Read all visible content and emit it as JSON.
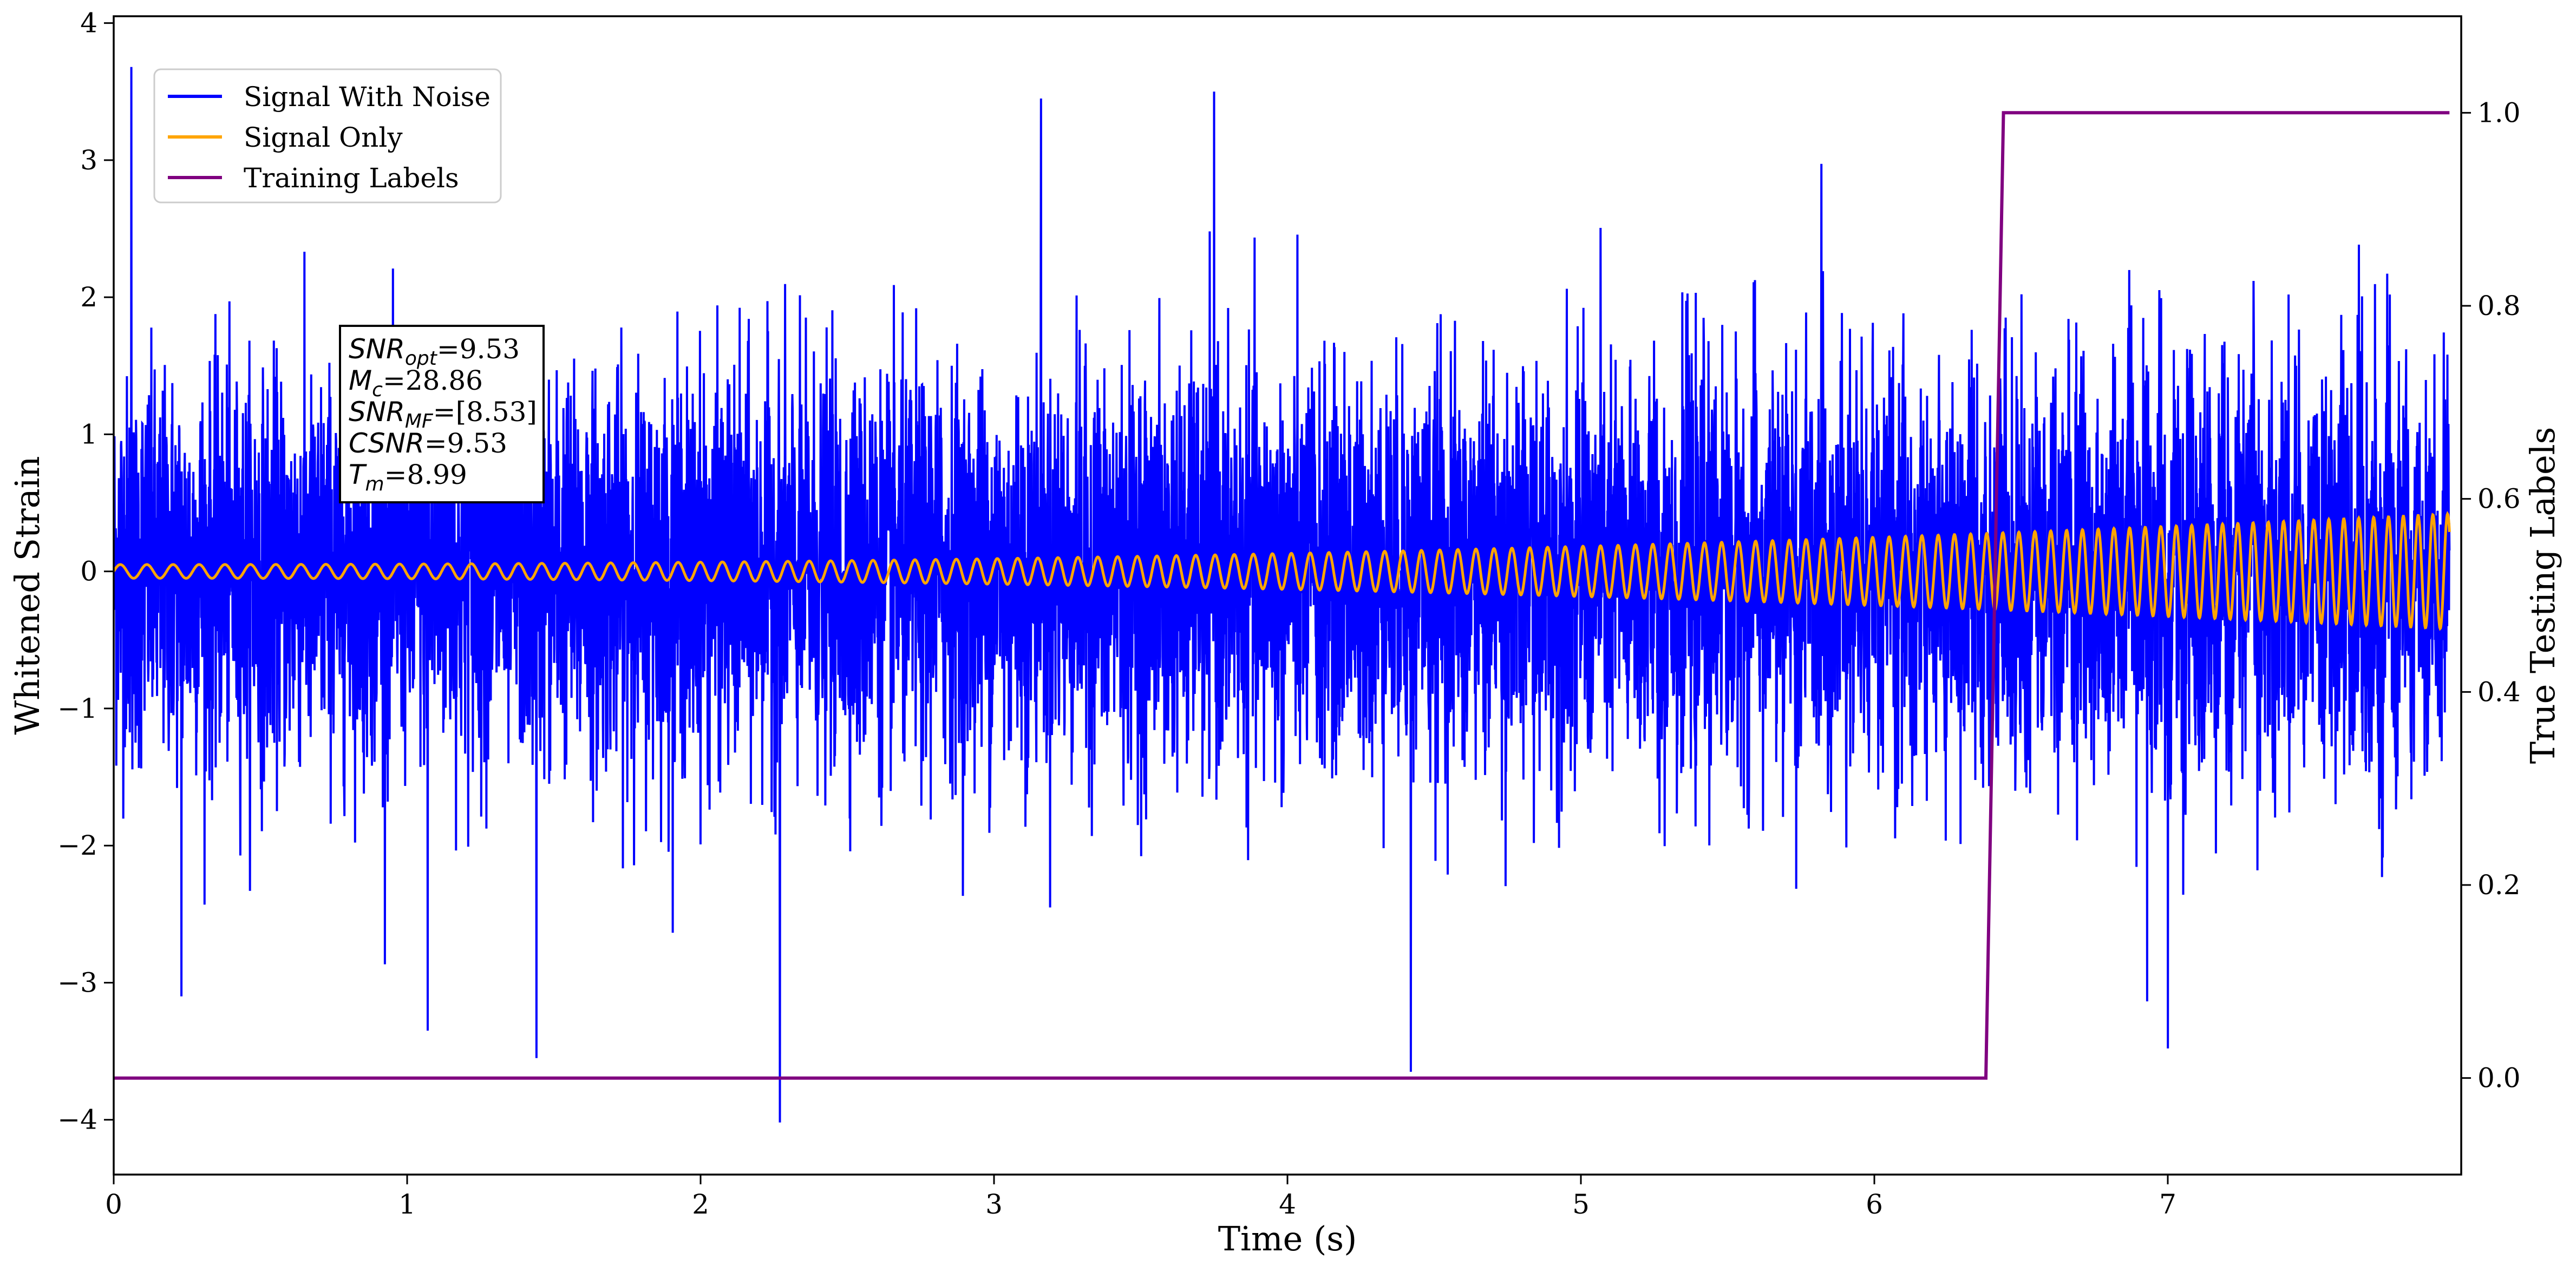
{
  "chart_data": {
    "type": "line",
    "title": "",
    "xlabel": "Time (s)",
    "ylabel": "Whitened Strain",
    "y2label": "True Testing Labels",
    "xlim": [
      0,
      8.0
    ],
    "ylim": [
      -4.4,
      4.05
    ],
    "y2lim": [
      -0.1,
      1.1
    ],
    "xticks": [
      0,
      1,
      2,
      3,
      4,
      5,
      6,
      7
    ],
    "yticks": [
      -4,
      -3,
      -2,
      -1,
      0,
      1,
      2,
      3,
      4
    ],
    "ytick_labels": [
      "−4",
      "−3",
      "−2",
      "−1",
      "0",
      "1",
      "2",
      "3",
      "4"
    ],
    "y2ticks": [
      0.0,
      0.2,
      0.4,
      0.6,
      0.8,
      1.0
    ],
    "y2tick_labels": [
      "0.0",
      "0.2",
      "0.4",
      "0.6",
      "0.8",
      "1.0"
    ],
    "grid": false,
    "legend_position": "top-left",
    "series": [
      {
        "name": "Signal With Noise",
        "color": "#0000ff",
        "axis": "left",
        "noise_sigma": 0.9,
        "notable_points": [
          {
            "x": 0.06,
            "y": 3.68
          },
          {
            "x": 0.23,
            "y": -3.1
          },
          {
            "x": 1.07,
            "y": -3.35
          },
          {
            "x": 1.44,
            "y": -3.55
          },
          {
            "x": 2.27,
            "y": -4.02
          },
          {
            "x": 3.16,
            "y": 3.45
          },
          {
            "x": 3.75,
            "y": 3.5
          },
          {
            "x": 4.42,
            "y": -3.65
          },
          {
            "x": 7.0,
            "y": -3.48
          }
        ]
      },
      {
        "name": "Signal Only",
        "color": "#ffa500",
        "axis": "left",
        "amplitude_start": 0.05,
        "amplitude_end": 0.42,
        "cycles_per_second_start": 11,
        "cycles_per_second_end": 20
      },
      {
        "name": "Training Labels",
        "color": "#800080",
        "axis": "right",
        "x": [
          0,
          6.38,
          6.44,
          7.96
        ],
        "y": [
          0,
          0,
          1,
          1
        ]
      }
    ],
    "annotation": {
      "lines": [
        {
          "var": "SNR",
          "sub": "opt",
          "value": "=9.53"
        },
        {
          "var": "M",
          "sub": "c",
          "value": "=28.86"
        },
        {
          "var": "SNR",
          "sub": "MF",
          "value": "=[8.53]"
        },
        {
          "var": "CSNR",
          "sub": "",
          "value": "=9.53"
        },
        {
          "var": "T",
          "sub": "m",
          "value": "=8.99"
        }
      ]
    }
  }
}
